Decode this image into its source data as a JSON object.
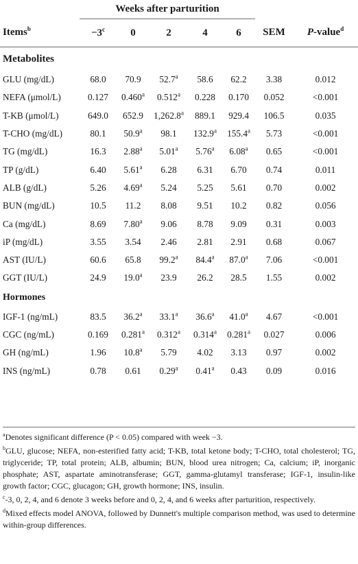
{
  "header": {
    "weeks_label": "Weeks after parturition",
    "items_label": "Items",
    "items_sup": "b",
    "columns": [
      "−3",
      "0",
      "2",
      "4",
      "6"
    ],
    "first_col_sup": "c",
    "sem_label": "SEM",
    "pvalue_label": "P",
    "pvalue_suffix": "-value",
    "pvalue_sup": "d"
  },
  "sections": [
    {
      "title": "Metabolites",
      "rows": [
        {
          "item": "GLU (mg/dL)",
          "v": [
            "68.0",
            "70.9",
            "52.7",
            "58.6",
            "62.2"
          ],
          "sig": [
            false,
            false,
            true,
            false,
            false
          ],
          "sem": "3.38",
          "p": "0.012"
        },
        {
          "item": "NEFA (μmol/L)",
          "v": [
            "0.127",
            "0.460",
            "0.512",
            "0.228",
            "0.170"
          ],
          "sig": [
            false,
            true,
            true,
            false,
            false
          ],
          "sem": "0.052",
          "p": "<0.001"
        },
        {
          "item": "T-KB (μmol/L)",
          "v": [
            "649.0",
            "652.9",
            "1,262.8",
            "889.1",
            "929.4"
          ],
          "sig": [
            false,
            false,
            true,
            false,
            false
          ],
          "sem": "106.5",
          "p": "0.035"
        },
        {
          "item": "T-CHO (mg/dL)",
          "v": [
            "80.1",
            "50.9",
            "98.1",
            "132.9",
            "155.4"
          ],
          "sig": [
            false,
            true,
            false,
            true,
            true
          ],
          "sem": "5.73",
          "p": "<0.001"
        },
        {
          "item": "TG (mg/dL)",
          "v": [
            "16.3",
            "2.88",
            "5.01",
            "5.76",
            "6.08"
          ],
          "sig": [
            false,
            true,
            true,
            true,
            true
          ],
          "sem": "0.65",
          "p": "<0.001"
        },
        {
          "item": "TP (g/dL)",
          "v": [
            "6.40",
            "5.61",
            "6.28",
            "6.31",
            "6.70"
          ],
          "sig": [
            false,
            true,
            false,
            false,
            false
          ],
          "sem": "0.74",
          "p": "0.011"
        },
        {
          "item": "ALB (g/dL)",
          "v": [
            "5.26",
            "4.69",
            "5.24",
            "5.25",
            "5.61"
          ],
          "sig": [
            false,
            true,
            false,
            false,
            false
          ],
          "sem": "0.70",
          "p": "0.002"
        },
        {
          "item": "BUN (mg/dL)",
          "v": [
            "10.5",
            "11.2",
            "8.08",
            "9.51",
            "10.2"
          ],
          "sig": [
            false,
            false,
            false,
            false,
            false
          ],
          "sem": "0.82",
          "p": "0.056"
        },
        {
          "item": "Ca (mg/dL)",
          "v": [
            "8.69",
            "7.80",
            "9.06",
            "8.78",
            "9.09"
          ],
          "sig": [
            false,
            true,
            false,
            false,
            false
          ],
          "sem": "0.31",
          "p": "0.003"
        },
        {
          "item": "iP (mg/dL)",
          "v": [
            "3.55",
            "3.54",
            "2.46",
            "2.81",
            "2.91"
          ],
          "sig": [
            false,
            false,
            false,
            false,
            false
          ],
          "sem": "0.68",
          "p": "0.067"
        },
        {
          "item": "AST (IU/L)",
          "v": [
            "60.6",
            "65.8",
            "99.2",
            "84.4",
            "87.0"
          ],
          "sig": [
            false,
            false,
            true,
            true,
            true
          ],
          "sem": "7.06",
          "p": "<0.001"
        },
        {
          "item": "GGT (IU/L)",
          "v": [
            "24.9",
            "19.0",
            "23.9",
            "26.2",
            "28.5"
          ],
          "sig": [
            false,
            true,
            false,
            false,
            false
          ],
          "sem": "1.55",
          "p": "0.002"
        }
      ]
    },
    {
      "title": "Hormones",
      "rows": [
        {
          "item": "IGF-1 (ng/mL)",
          "v": [
            "83.5",
            "36.2",
            "33.1",
            "36.6",
            "41.0"
          ],
          "sig": [
            false,
            true,
            true,
            true,
            true
          ],
          "sem": "4.67",
          "p": "<0.001"
        },
        {
          "item": "CGC (ng/mL)",
          "v": [
            "0.169",
            "0.281",
            "0.312",
            "0.314",
            "0.281"
          ],
          "sig": [
            false,
            true,
            true,
            true,
            true
          ],
          "sem": "0.027",
          "p": "0.006"
        },
        {
          "item": "GH (ng/mL)",
          "v": [
            "1.96",
            "10.8",
            "5.79",
            "4.02",
            "3.13"
          ],
          "sig": [
            false,
            true,
            false,
            false,
            false
          ],
          "sem": "0.97",
          "p": "0.002"
        },
        {
          "item": "INS (ng/mL)",
          "v": [
            "0.78",
            "0.61",
            "0.29",
            "0.41",
            "0.43"
          ],
          "sig": [
            false,
            false,
            true,
            true,
            false
          ],
          "sem": "0.09",
          "p": "0.016"
        }
      ]
    }
  ],
  "sig_marker": "a",
  "footnotes": [
    {
      "sup": "a",
      "text": "Denotes significant difference (P < 0.05) compared with week −3."
    },
    {
      "sup": "b",
      "text": "GLU, glucose; NEFA, non-esterified fatty acid; T-KB, total ketone body; T-CHO, total cholesterol; TG, triglyceride; TP, total protein; ALB, albumin; BUN, blood urea nitrogen; Ca, calcium; iP, inorganic phosphate; AST, aspartate aminotransferase; GGT, gamma-glutamyl transferase; IGF-1, insulin-like growth factor; CGC, glucagon; GH, growth hormone; INS, insulin."
    },
    {
      "sup": "c",
      "text": "-3, 0, 2, 4, and 6 denote 3 weeks before and 0, 2, 4, and 6 weeks after parturition, respectively."
    },
    {
      "sup": "d",
      "text": "Mixed effects model ANOVA, followed by Dunnett's multiple comparison method, was used to determine within-group differences."
    }
  ]
}
